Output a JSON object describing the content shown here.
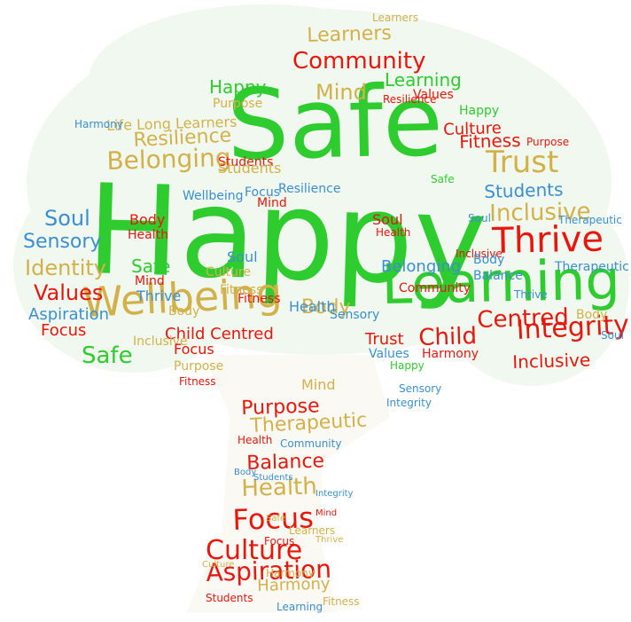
{
  "palette": {
    "green": "#2ecc2e",
    "red": "#e8160c",
    "gold": "#d2b14a",
    "blue": "#3a8fd1",
    "canopy": "#f1f8ef",
    "trunk": "#fbf9f4"
  },
  "words": [
    {
      "text": "Happy",
      "color": "green"
    },
    {
      "text": "Safe",
      "color": "green"
    },
    {
      "text": "Learning",
      "color": "green"
    },
    {
      "text": "Thrive",
      "color": "red"
    },
    {
      "text": "Wellbeing",
      "color": "gold"
    },
    {
      "text": "Community",
      "color": "red"
    },
    {
      "text": "Belonging",
      "color": "gold"
    },
    {
      "text": "Trust",
      "color": "gold"
    },
    {
      "text": "Child Centred",
      "color": "red"
    },
    {
      "text": "Integrity",
      "color": "red"
    },
    {
      "text": "Inclusive",
      "color": "gold"
    },
    {
      "text": "Values",
      "color": "red"
    },
    {
      "text": "Identity",
      "color": "gold"
    },
    {
      "text": "Sensory",
      "color": "blue"
    },
    {
      "text": "Soul",
      "color": "blue"
    },
    {
      "text": "Culture",
      "color": "red"
    },
    {
      "text": "Aspiration",
      "color": "red"
    },
    {
      "text": "Focus",
      "color": "red"
    },
    {
      "text": "Health",
      "color": "gold"
    },
    {
      "text": "Balance",
      "color": "red"
    },
    {
      "text": "Therapeutic",
      "color": "gold"
    },
    {
      "text": "Purpose",
      "color": "red"
    },
    {
      "text": "Harmony",
      "color": "gold"
    },
    {
      "text": "Resilience",
      "color": "gold"
    },
    {
      "text": "Fitness",
      "color": "red"
    },
    {
      "text": "Students",
      "color": "blue"
    },
    {
      "text": "Mind",
      "color": "gold"
    },
    {
      "text": "Body",
      "color": "gold"
    },
    {
      "text": "Learners",
      "color": "gold"
    },
    {
      "text": "Values",
      "color": "red"
    },
    {
      "text": "Purpose",
      "color": "gold"
    },
    {
      "text": "Happy",
      "color": "green"
    },
    {
      "text": "Learning",
      "color": "green"
    },
    {
      "text": "Culture",
      "color": "red"
    },
    {
      "text": "Fitness",
      "color": "red"
    },
    {
      "text": "Life Long Learners",
      "color": "gold"
    },
    {
      "text": "Students",
      "color": "red"
    },
    {
      "text": "Resilience",
      "color": "blue"
    },
    {
      "text": "Focus",
      "color": "blue"
    },
    {
      "text": "Wellbeing",
      "color": "blue"
    },
    {
      "text": "Body",
      "color": "red"
    },
    {
      "text": "Health",
      "color": "red"
    },
    {
      "text": "Mind",
      "color": "red"
    },
    {
      "text": "Soul",
      "color": "red"
    },
    {
      "text": "Health",
      "color": "red"
    },
    {
      "text": "Safe",
      "color": "green"
    },
    {
      "text": "Mind",
      "color": "red"
    },
    {
      "text": "Thrive",
      "color": "blue"
    },
    {
      "text": "Soul",
      "color": "blue"
    },
    {
      "text": "Culture",
      "color": "gold"
    },
    {
      "text": "Fitness",
      "color": "gold"
    },
    {
      "text": "Body",
      "color": "gold"
    },
    {
      "text": "Health",
      "color": "blue"
    },
    {
      "text": "Aspiration",
      "color": "blue"
    },
    {
      "text": "Sensory",
      "color": "blue"
    },
    {
      "text": "Belonging",
      "color": "blue"
    },
    {
      "text": "Community",
      "color": "red"
    },
    {
      "text": "Trust",
      "color": "red"
    },
    {
      "text": "Child",
      "color": "red"
    },
    {
      "text": "Centred",
      "color": "red"
    },
    {
      "text": "Balance",
      "color": "blue"
    },
    {
      "text": "Therapeutic",
      "color": "blue"
    },
    {
      "text": "Students",
      "color": "gold"
    },
    {
      "text": "Inclusive",
      "color": "red"
    },
    {
      "text": "Body",
      "color": "gold"
    },
    {
      "text": "Soul",
      "color": "blue"
    },
    {
      "text": "Harmony",
      "color": "red"
    },
    {
      "text": "Values",
      "color": "blue"
    },
    {
      "text": "Happy",
      "color": "green"
    },
    {
      "text": "Safe",
      "color": "green"
    },
    {
      "text": "Focus",
      "color": "red"
    },
    {
      "text": "Inclusive",
      "color": "gold"
    },
    {
      "text": "Focus",
      "color": "red"
    },
    {
      "text": "Purpose",
      "color": "gold"
    },
    {
      "text": "Fitness",
      "color": "red"
    },
    {
      "text": "Mind",
      "color": "gold"
    },
    {
      "text": "Sensory",
      "color": "blue"
    },
    {
      "text": "Integrity",
      "color": "blue"
    },
    {
      "text": "Health",
      "color": "red"
    },
    {
      "text": "Community",
      "color": "blue"
    },
    {
      "text": "Body",
      "color": "blue"
    },
    {
      "text": "Students",
      "color": "blue"
    },
    {
      "text": "Learners",
      "color": "gold"
    },
    {
      "text": "Focus",
      "color": "red"
    },
    {
      "text": "Thrive",
      "color": "gold"
    },
    {
      "text": "Culture",
      "color": "gold"
    },
    {
      "text": "Harmony",
      "color": "gold"
    },
    {
      "text": "Learning",
      "color": "blue"
    },
    {
      "text": "Students",
      "color": "red"
    },
    {
      "text": "Fitness",
      "color": "gold"
    },
    {
      "text": "Safe",
      "color": "gold"
    },
    {
      "text": "Mind",
      "color": "red"
    },
    {
      "text": "Integrity",
      "color": "blue"
    },
    {
      "text": "Harmony",
      "color": "blue"
    },
    {
      "text": "Learners",
      "color": "gold"
    },
    {
      "text": "Resilience",
      "color": "red"
    },
    {
      "text": "Thrive",
      "color": "blue"
    },
    {
      "text": "Therapeutic",
      "color": "blue"
    },
    {
      "text": "Purpose",
      "color": "red"
    },
    {
      "text": "Happy",
      "color": "green"
    },
    {
      "text": "Safe",
      "color": "green"
    },
    {
      "text": "Soul",
      "color": "blue"
    },
    {
      "text": "Inclusive",
      "color": "red"
    },
    {
      "text": "Body",
      "color": "blue"
    }
  ]
}
